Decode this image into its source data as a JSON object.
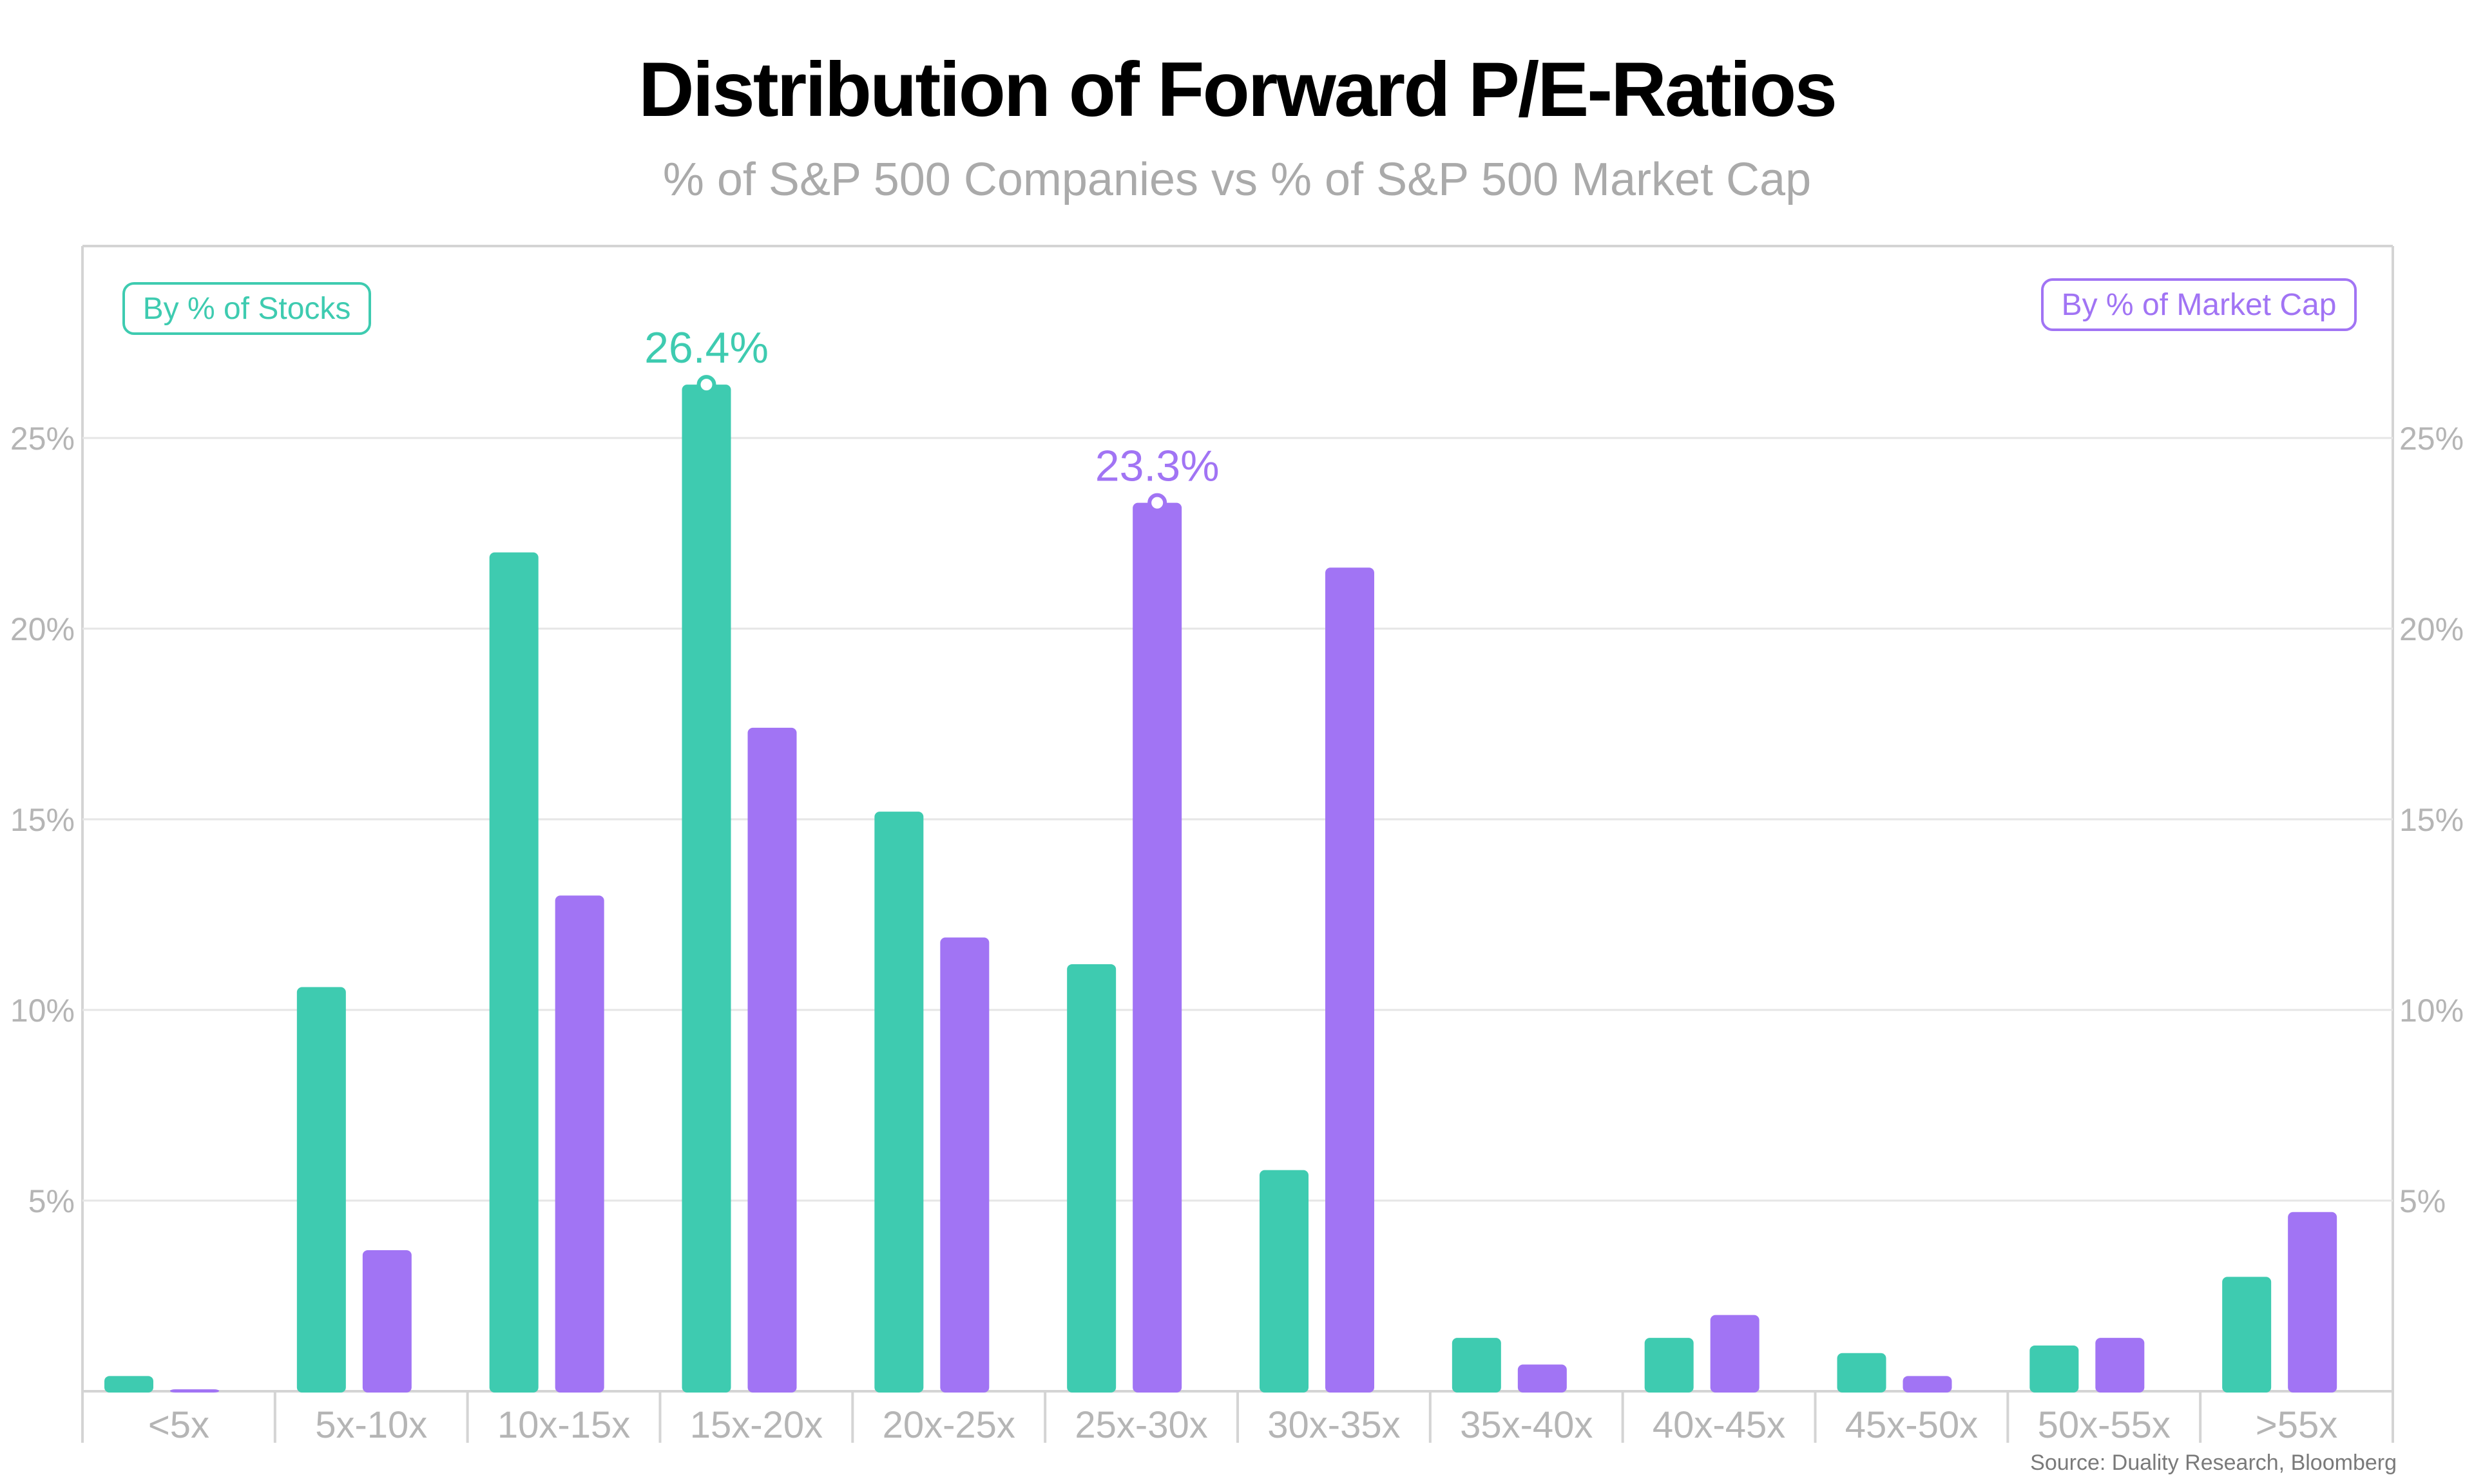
{
  "title": "Distribution of Forward P/E-Ratios",
  "subtitle": "% of S&P 500 Companies vs % of S&P 500 Market Cap",
  "source": "Source: Duality Research, Bloomberg",
  "colors": {
    "stocks": "#3ecbb0",
    "market_cap": "#a174f4",
    "axis_text": "#b5b5b5",
    "grid": "#e6e6e6",
    "frame": "#d4d4d4"
  },
  "chart_data": {
    "type": "bar",
    "categories": [
      "<5x",
      "5x-10x",
      "10x-15x",
      "15x-20x",
      "20x-25x",
      "25x-30x",
      "30x-35x",
      "35x-40x",
      "40x-45x",
      "45x-50x",
      "50x-55x",
      ">55x"
    ],
    "series": [
      {
        "name": "By % of Stocks",
        "values": [
          0.4,
          10.6,
          22.0,
          26.4,
          15.2,
          11.2,
          5.8,
          1.4,
          1.4,
          1.0,
          1.2,
          3.0
        ]
      },
      {
        "name": "By % of Market Cap",
        "values": [
          0.05,
          3.7,
          13.0,
          17.4,
          11.9,
          23.3,
          21.6,
          0.7,
          2.0,
          0.4,
          1.4,
          4.7
        ]
      }
    ],
    "ylim": [
      0,
      26.4
    ],
    "yticks": [
      "5%",
      "10%",
      "15%",
      "20%",
      "25%"
    ],
    "y_tick_values": [
      5,
      10,
      15,
      20,
      25
    ],
    "annotations": [
      {
        "series": 0,
        "category": "15x-20x",
        "label": "26.4%"
      },
      {
        "series": 1,
        "category": "25x-30x",
        "label": "23.3%"
      }
    ],
    "grid": true,
    "legend": [
      "top-left",
      "top-right"
    ]
  }
}
